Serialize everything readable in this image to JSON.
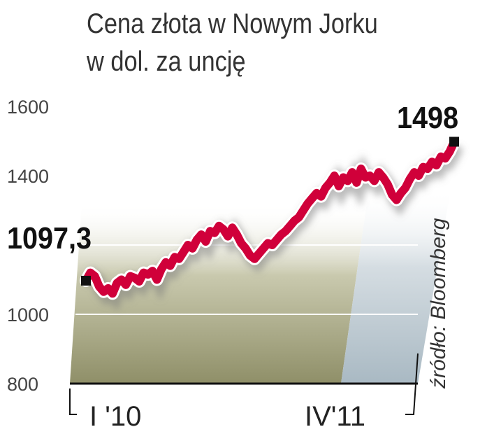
{
  "chart_data": {
    "type": "line",
    "title": "Cena złota w Nowym Jorku",
    "subtitle": "w dol. za uncję",
    "source": "źródło: Bloomberg",
    "ylim": [
      800,
      1600
    ],
    "yticks": [
      "1600",
      "1400",
      "1000",
      "800"
    ],
    "xtick_labels": [
      "I '10",
      "IV'11"
    ],
    "grid": true,
    "colors": {
      "line": "#d0003a",
      "area": "#9a9a78",
      "area_recent": "#b4c2cb"
    },
    "annotations": {
      "start": "1097,3",
      "end": "1498"
    },
    "series": [
      {
        "values": [
          1097,
          1120,
          1110,
          1080,
          1065,
          1075,
          1060,
          1090,
          1100,
          1085,
          1110,
          1105,
          1095,
          1120,
          1115,
          1125,
          1100,
          1130,
          1150,
          1140,
          1165,
          1160,
          1180,
          1200,
          1190,
          1215,
          1230,
          1210,
          1240,
          1235,
          1255,
          1245,
          1225,
          1250,
          1230,
          1205,
          1190,
          1170,
          1160,
          1175,
          1190,
          1205,
          1200,
          1215,
          1230,
          1240,
          1255,
          1270,
          1280,
          1300,
          1320,
          1335,
          1350,
          1340,
          1365,
          1380,
          1400,
          1370,
          1395,
          1385,
          1410,
          1380,
          1420,
          1395,
          1400,
          1385,
          1410,
          1395,
          1375,
          1345,
          1330,
          1350,
          1365,
          1390,
          1410,
          1400,
          1425,
          1420,
          1440,
          1430,
          1455,
          1450,
          1470,
          1498
        ]
      }
    ]
  }
}
